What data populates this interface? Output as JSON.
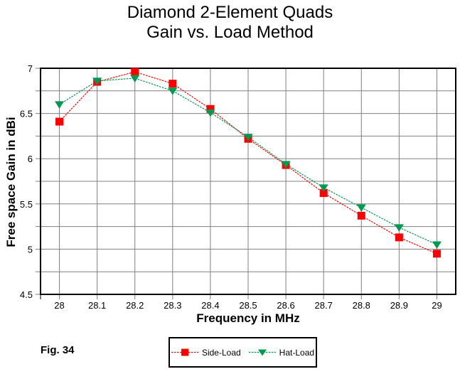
{
  "title": {
    "line1": "Diamond 2-Element Quads",
    "line2": "Gain vs. Load Method"
  },
  "figure_label": "Fig. 34",
  "colors": {
    "background": "#FFFFFF",
    "grid": "#808080",
    "axis": "#000000",
    "text": "#000000",
    "side_load": "#FF0000",
    "hat_load": "#009950"
  },
  "chart_data": {
    "type": "line",
    "title": "Diamond 2-Element Quads — Gain vs. Load Method",
    "xlabel": "Frequency in MHz",
    "ylabel": "Free space Gain in dBi",
    "categories": [
      "28",
      "28.1",
      "28.2",
      "28.3",
      "28.4",
      "28.5",
      "28.6",
      "28.7",
      "28.8",
      "28.9",
      "29"
    ],
    "series": [
      {
        "name": "Side-Load",
        "color": "#FF0000",
        "marker": "square",
        "values": [
          6.41,
          6.85,
          6.96,
          6.83,
          6.55,
          6.22,
          5.93,
          5.62,
          5.37,
          5.13,
          4.95
        ]
      },
      {
        "name": "Hat-Load",
        "color": "#009950",
        "marker": "triangle-down",
        "values": [
          6.6,
          6.86,
          6.89,
          6.75,
          6.51,
          6.24,
          5.94,
          5.68,
          5.46,
          5.24,
          5.05
        ]
      }
    ],
    "ylim": [
      4.5,
      7
    ],
    "y_major_ticks": [
      7,
      6.5,
      6,
      5.5,
      5,
      4.5
    ],
    "y_grid_step": 0.25,
    "grid": true,
    "legend_position": "bottom-center"
  }
}
